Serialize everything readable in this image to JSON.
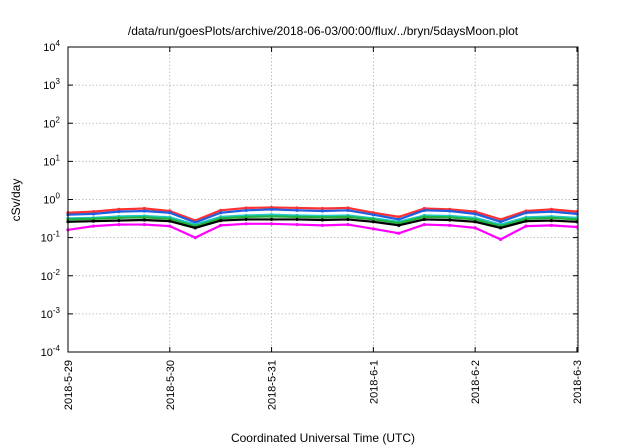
{
  "chart_data": {
    "type": "line",
    "title": "/data/run/goesPlots/archive/2018-06-03/00:00/flux/../bryn/5daysMoon.plot",
    "xlabel": "Coordinated Universal Time (UTC)",
    "ylabel": "cSv/day",
    "yscale": "log",
    "ylim": [
      0.0001,
      10000
    ],
    "xlim": [
      "2018-05-29",
      "2018-06-03 00:15"
    ],
    "grid": true,
    "x_ticks": [
      "2018-5-29",
      "2018-5-30",
      "2018-5-31",
      "2018-6-1",
      "2018-6-2",
      "2018-6-3"
    ],
    "y_ticks": [
      {
        "value": 0.0001,
        "base": "10",
        "exp": "-4"
      },
      {
        "value": 0.001,
        "base": "10",
        "exp": "-3"
      },
      {
        "value": 0.01,
        "base": "10",
        "exp": "-2"
      },
      {
        "value": 0.1,
        "base": "10",
        "exp": "-1"
      },
      {
        "value": 1,
        "base": "10",
        "exp": "0"
      },
      {
        "value": 10,
        "base": "10",
        "exp": "1"
      },
      {
        "value": 100,
        "base": "10",
        "exp": "2"
      },
      {
        "value": 1000,
        "base": "10",
        "exp": "3"
      },
      {
        "value": 10000,
        "base": "10",
        "exp": "4"
      }
    ],
    "x": [
      "2018-05-29 00:00",
      "2018-05-29 06:00",
      "2018-05-29 12:00",
      "2018-05-29 18:00",
      "2018-05-30 00:00",
      "2018-05-30 06:00",
      "2018-05-30 12:00",
      "2018-05-30 18:00",
      "2018-05-31 00:00",
      "2018-05-31 06:00",
      "2018-05-31 12:00",
      "2018-05-31 18:00",
      "2018-06-01 00:00",
      "2018-06-01 06:00",
      "2018-06-01 12:00",
      "2018-06-01 18:00",
      "2018-06-02 00:00",
      "2018-06-02 06:00",
      "2018-06-02 12:00",
      "2018-06-02 18:00",
      "2018-06-03 00:00"
    ],
    "series": [
      {
        "color": "#ff3030",
        "values": [
          0.45,
          0.48,
          0.55,
          0.58,
          0.5,
          0.28,
          0.52,
          0.6,
          0.62,
          0.6,
          0.58,
          0.6,
          0.45,
          0.35,
          0.58,
          0.55,
          0.48,
          0.3,
          0.5,
          0.55,
          0.48
        ]
      },
      {
        "color": "#1f5fe0",
        "values": [
          0.4,
          0.42,
          0.48,
          0.5,
          0.45,
          0.25,
          0.45,
          0.52,
          0.55,
          0.52,
          0.5,
          0.52,
          0.4,
          0.3,
          0.52,
          0.5,
          0.42,
          0.26,
          0.45,
          0.48,
          0.42
        ]
      },
      {
        "color": "#20c8c8",
        "values": [
          0.32,
          0.33,
          0.36,
          0.37,
          0.34,
          0.22,
          0.35,
          0.38,
          0.4,
          0.38,
          0.37,
          0.38,
          0.32,
          0.26,
          0.38,
          0.37,
          0.33,
          0.22,
          0.34,
          0.36,
          0.33
        ]
      },
      {
        "color": "#20b040",
        "values": [
          0.3,
          0.31,
          0.33,
          0.34,
          0.31,
          0.2,
          0.32,
          0.35,
          0.36,
          0.35,
          0.34,
          0.35,
          0.3,
          0.24,
          0.35,
          0.34,
          0.3,
          0.2,
          0.31,
          0.33,
          0.3
        ]
      },
      {
        "color": "#000000",
        "values": [
          0.26,
          0.27,
          0.28,
          0.29,
          0.27,
          0.18,
          0.28,
          0.3,
          0.3,
          0.3,
          0.29,
          0.3,
          0.26,
          0.21,
          0.3,
          0.29,
          0.26,
          0.18,
          0.27,
          0.28,
          0.26
        ]
      },
      {
        "color": "#ff00ff",
        "values": [
          0.16,
          0.2,
          0.22,
          0.22,
          0.2,
          0.1,
          0.21,
          0.23,
          0.23,
          0.22,
          0.21,
          0.22,
          0.17,
          0.13,
          0.22,
          0.21,
          0.18,
          0.09,
          0.2,
          0.21,
          0.19
        ]
      }
    ]
  }
}
